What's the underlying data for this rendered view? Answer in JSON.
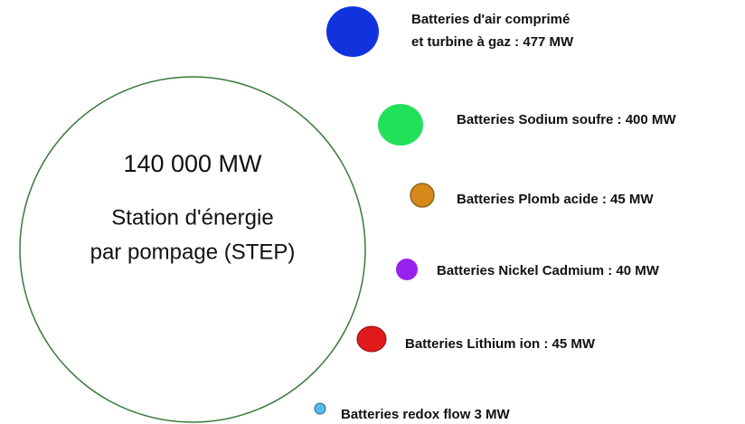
{
  "center": {
    "value": "140 000 MW",
    "lines": [
      "Station d'énergie",
      "par pompage (STEP)"
    ]
  },
  "nodes": [
    {
      "lines": [
        "Batteries d'air comprimé",
        "et turbine à gaz : 477 MW"
      ]
    },
    {
      "lines": [
        "Batteries Sodium soufre : 400 MW"
      ]
    },
    {
      "lines": [
        "Batteries Plomb acide : 45 MW"
      ]
    },
    {
      "lines": [
        "Batteries Nickel Cadmium : 40 MW"
      ]
    },
    {
      "lines": [
        "Batteries Lithium ion : 45 MW"
      ]
    },
    {
      "lines": [
        "Batteries redox flow 3 MW"
      ]
    }
  ]
}
